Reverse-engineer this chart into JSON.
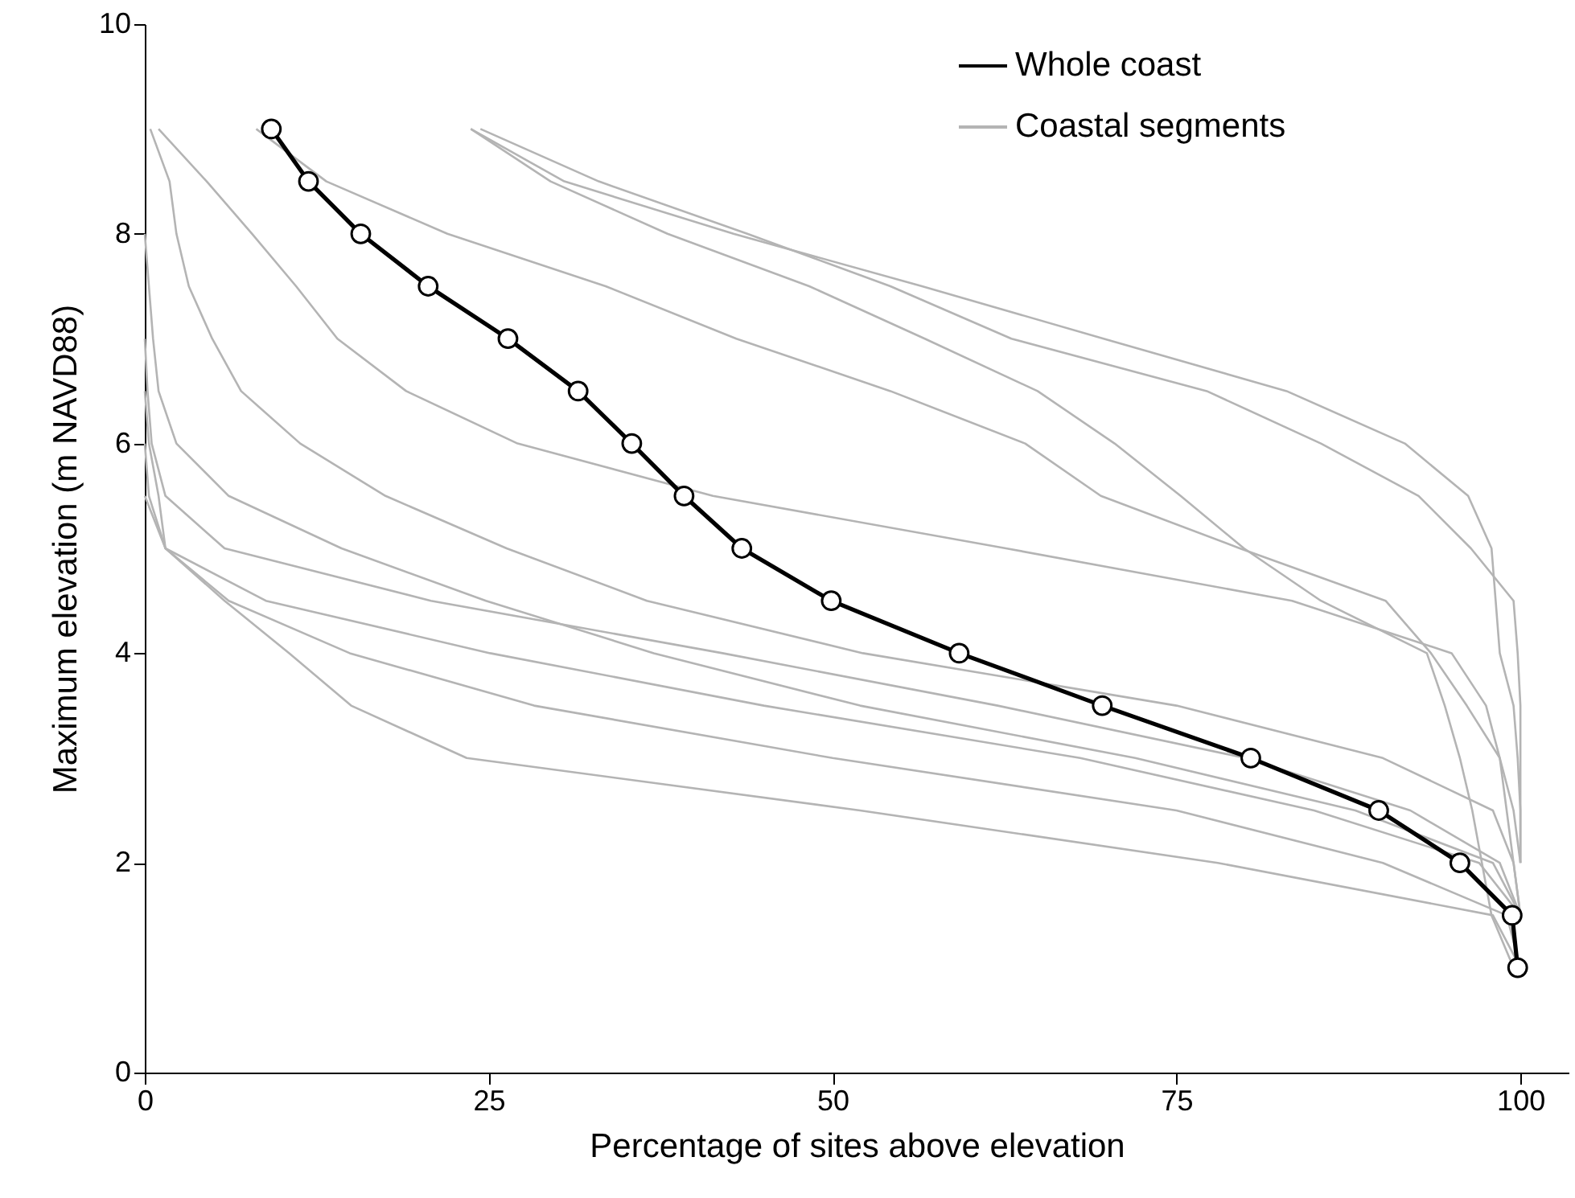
{
  "chart_data": {
    "type": "line",
    "xlabel": "Percentage of sites above elevation",
    "ylabel": "Maximum elevation (m NAVD88)",
    "xlim": [
      0,
      103.5
    ],
    "ylim": [
      0,
      10
    ],
    "xticks": [
      0,
      25,
      50,
      75,
      100
    ],
    "yticks": [
      0,
      2,
      4,
      6,
      8,
      10
    ],
    "grid": false,
    "legend": "top right",
    "series": [
      {
        "name": "Coastal segments",
        "color": "#b4b4b4",
        "marker": "none",
        "x": [
          24.4,
          33,
          43.8,
          54.2,
          63,
          77.2,
          85.5,
          92.6,
          96.4,
          99.5,
          99.8,
          100,
          100,
          100,
          100
        ],
        "values": [
          9,
          8.5,
          8,
          7.5,
          7,
          6.5,
          6,
          5.5,
          5,
          4.5,
          4,
          3.5,
          3,
          2.5,
          2
        ]
      },
      {
        "color": "#b4b4b4",
        "marker": "none",
        "x": [
          23.7,
          30.5,
          42.8,
          56.5,
          69.7,
          83,
          91.6,
          96.2,
          97.9,
          98.2,
          98.5,
          99.5,
          99.8,
          100,
          100
        ],
        "values": [
          9,
          8.5,
          8,
          7.5,
          7,
          6.5,
          6,
          5.5,
          5,
          4.5,
          4,
          3.5,
          3,
          2.5,
          2
        ]
      },
      {
        "color": "#b4b4b4",
        "marker": "none",
        "x": [
          23.7,
          29.5,
          38,
          48.3,
          56.7,
          64.9,
          70.5,
          75.3,
          79.9,
          85.5,
          93.2,
          94.5,
          95.6,
          96.5,
          97.2,
          97.9,
          99.5
        ],
        "values": [
          9,
          8.5,
          8,
          7.5,
          7,
          6.5,
          6,
          5.5,
          5,
          4.5,
          4,
          3.5,
          3,
          2.5,
          2,
          1.5,
          1
        ]
      },
      {
        "color": "#b4b4b4",
        "marker": "none",
        "x": [
          8.1,
          13.2,
          22,
          33.5,
          43,
          54.2,
          64,
          69.5,
          79.6,
          90.2,
          93.5,
          96.1,
          98.5,
          99.5,
          100
        ],
        "values": [
          9,
          8.5,
          8,
          7.5,
          7,
          6.5,
          6,
          5.5,
          5,
          4.5,
          4,
          3.5,
          3,
          2.5,
          2
        ]
      },
      {
        "color": "#b4b4b4",
        "marker": "none",
        "x": [
          1,
          4.5,
          7.8,
          11,
          14,
          19,
          27.1,
          41.3,
          62.6,
          83.4,
          95,
          97.5,
          98.5,
          99,
          99.5,
          100
        ],
        "values": [
          9,
          8.5,
          8,
          7.5,
          7,
          6.5,
          6,
          5.5,
          5,
          4.5,
          4,
          3.5,
          3,
          2.5,
          2,
          1.5
        ]
      },
      {
        "color": "#b4b4b4",
        "marker": "none",
        "x": [
          0.4,
          1.8,
          2.3,
          3.2,
          4.9,
          7,
          11.3,
          17.5,
          26.3,
          36.5,
          52.2,
          75,
          90,
          98,
          99.5,
          100
        ],
        "values": [
          9,
          8.5,
          8,
          7.5,
          7,
          6.5,
          6,
          5.5,
          5,
          4.5,
          4,
          3.5,
          3,
          2.5,
          2,
          1.5
        ]
      },
      {
        "color": "#b4b4b4",
        "marker": "none",
        "x": [
          0,
          0.3,
          0.6,
          1,
          2.3,
          6.1,
          14.3,
          24.8,
          37,
          52,
          72,
          88,
          98,
          100
        ],
        "values": [
          8,
          7.5,
          7,
          6.5,
          6,
          5.5,
          5,
          4.5,
          4,
          3.5,
          3,
          2.5,
          2,
          1.5
        ]
      },
      {
        "color": "#b4b4b4",
        "marker": "none",
        "x": [
          0,
          0.2,
          0.5,
          1.5,
          5.8,
          20.8,
          42,
          62,
          80,
          92,
          98.5,
          100
        ],
        "values": [
          7,
          6.5,
          6,
          5.5,
          5,
          4.5,
          4,
          3.5,
          3,
          2.5,
          2,
          1.5
        ]
      },
      {
        "color": "#b4b4b4",
        "marker": "none",
        "x": [
          0,
          0.3,
          1,
          1.5,
          8.8,
          25.1,
          45,
          68,
          85,
          97,
          100
        ],
        "values": [
          6.5,
          6,
          5.5,
          5,
          4.5,
          4,
          3.5,
          3,
          2.5,
          2,
          1.5
        ]
      },
      {
        "color": "#b4b4b4",
        "marker": "none",
        "x": [
          0,
          0.3,
          1.5,
          6.1,
          14.9,
          28.3,
          50,
          75,
          90,
          99,
          100
        ],
        "values": [
          6,
          5.5,
          5,
          4.5,
          4,
          3.5,
          3,
          2.5,
          2,
          1.5,
          1
        ]
      },
      {
        "color": "#b4b4b4",
        "marker": "none",
        "x": [
          0,
          1.5,
          5.8,
          10.5,
          15,
          23.4,
          52,
          78,
          98,
          100
        ],
        "values": [
          5.5,
          5,
          4.5,
          4,
          3.5,
          3,
          2.5,
          2,
          1.5,
          1
        ]
      },
      {
        "name": "Whole coast",
        "color": "#000000",
        "marker": "circle",
        "x": [
          9.2,
          11.9,
          15.7,
          20.6,
          26.4,
          31.5,
          35.4,
          39.2,
          43.4,
          49.9,
          59.2,
          69.6,
          80.4,
          89.7,
          95.6,
          99.4,
          99.8
        ],
        "values": [
          9,
          8.5,
          8,
          7.5,
          7,
          6.5,
          6,
          5.5,
          5,
          4.5,
          4,
          3.5,
          3,
          2.5,
          2,
          1.5,
          1
        ]
      }
    ]
  }
}
